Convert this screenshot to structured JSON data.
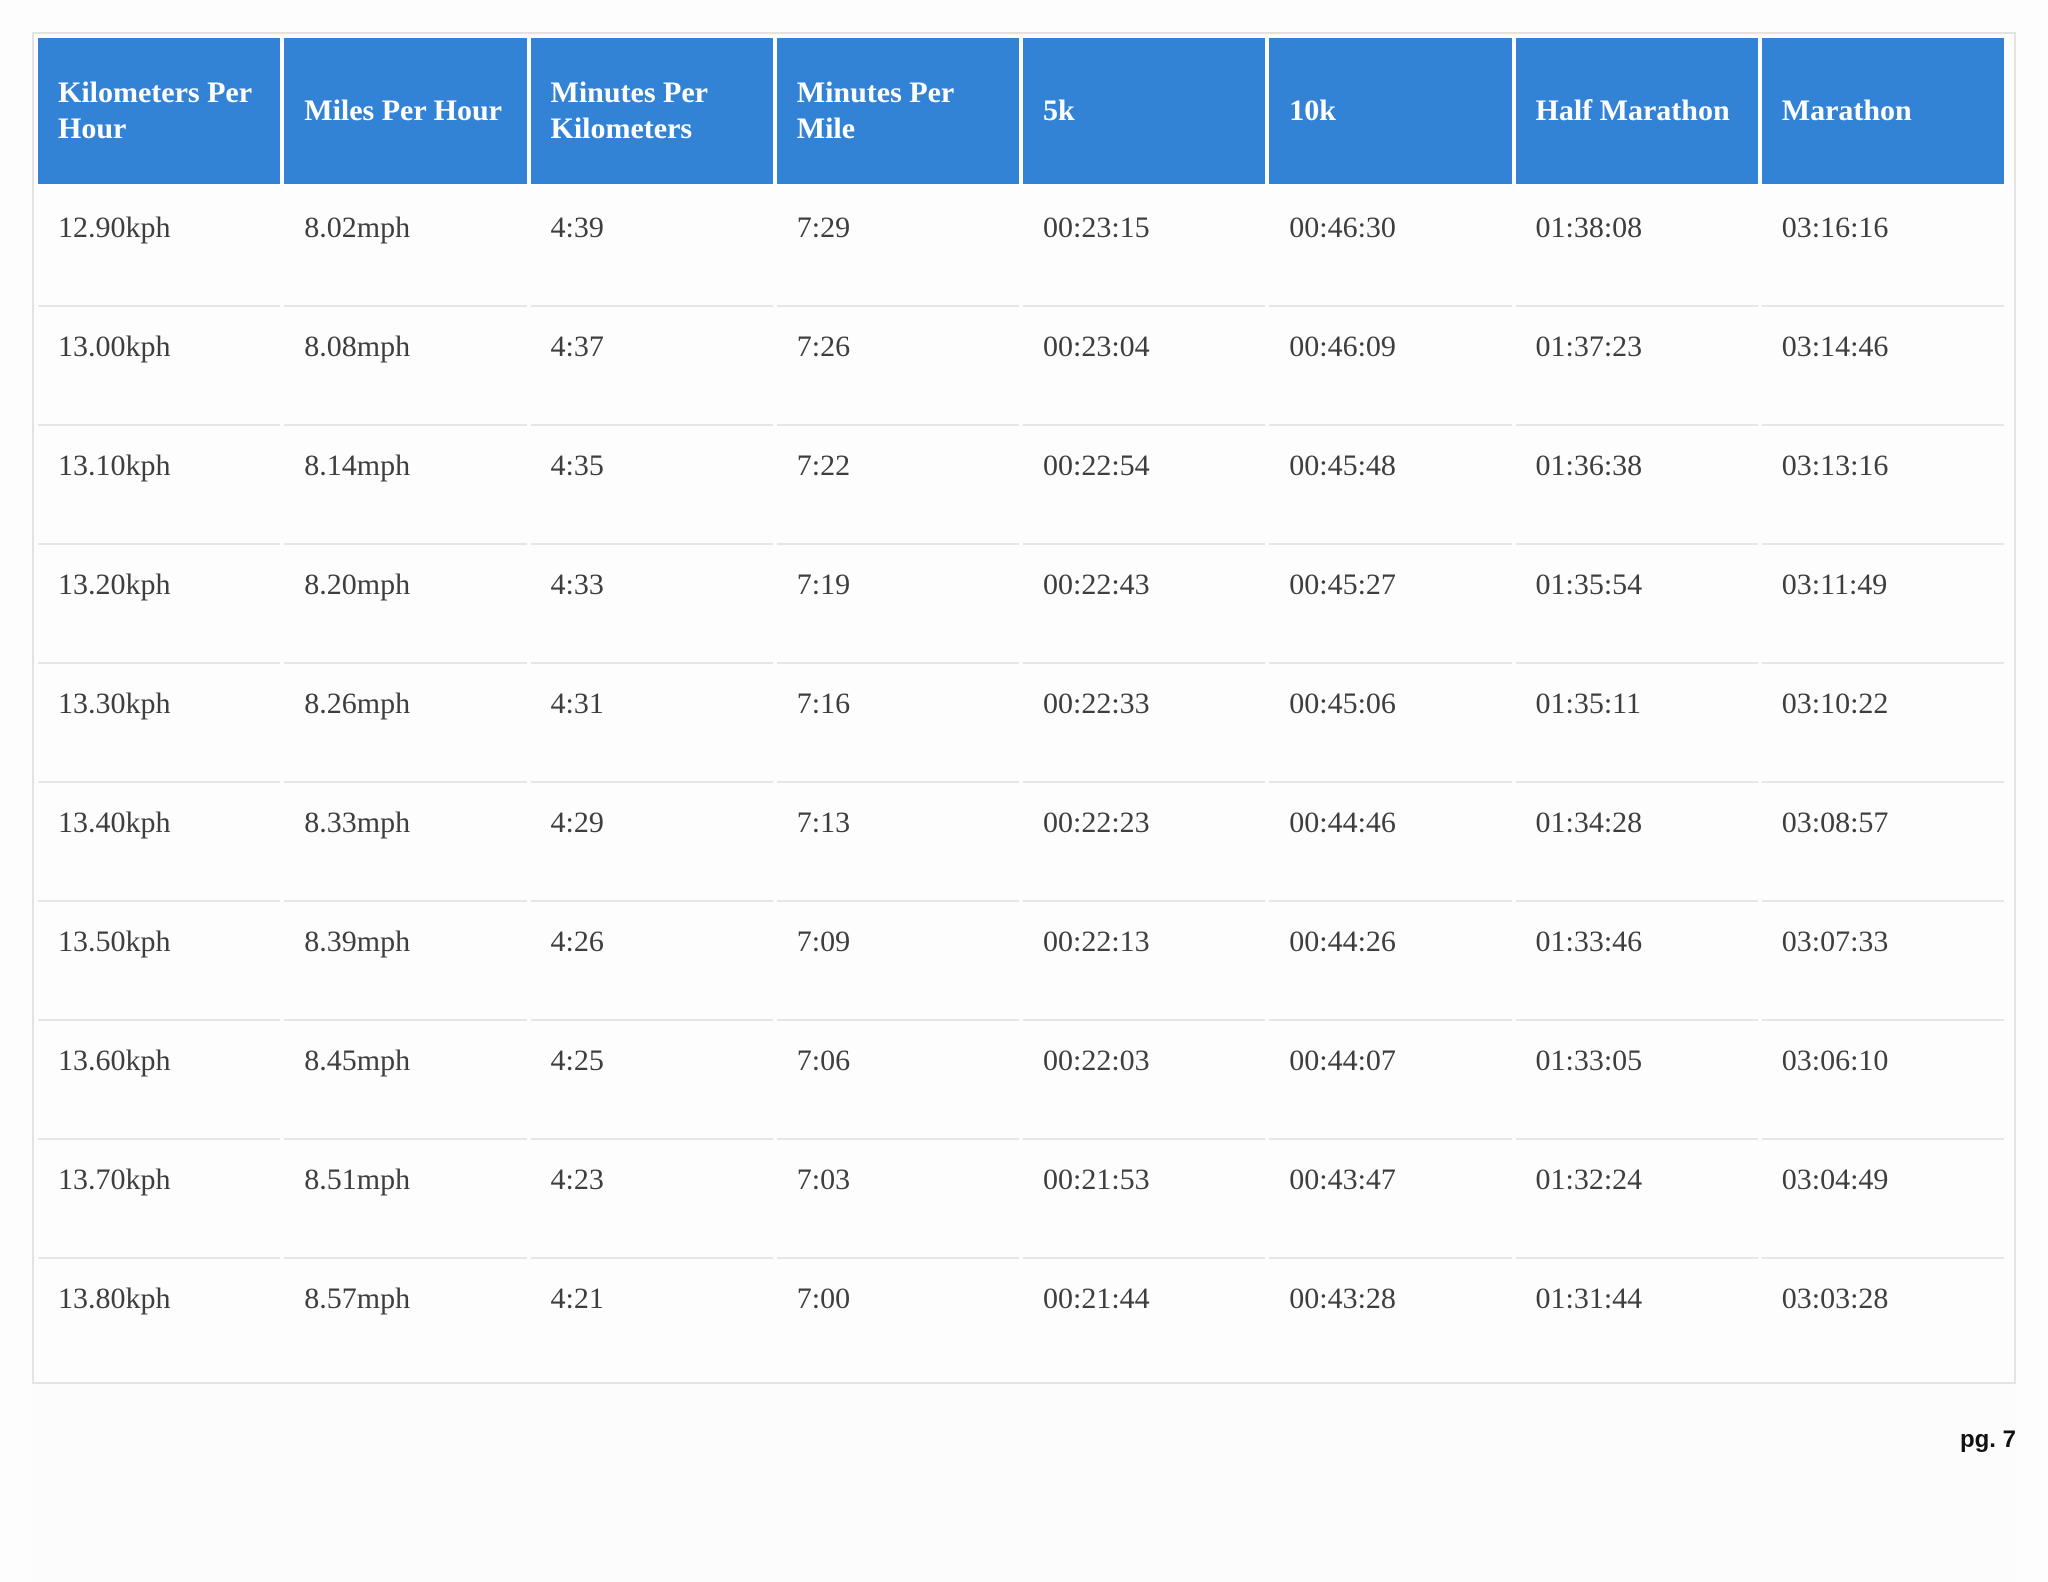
{
  "table": {
    "headers": [
      "Kilometers Per Hour",
      "Miles Per Hour",
      "Minutes Per Kilometers",
      "Minutes Per Mile",
      "5k",
      "10k",
      "Half Marathon",
      "Marathon"
    ],
    "rows": [
      [
        "12.90kph",
        "8.02mph",
        "4:39",
        "7:29",
        "00:23:15",
        "00:46:30",
        "01:38:08",
        "03:16:16"
      ],
      [
        "13.00kph",
        "8.08mph",
        "4:37",
        "7:26",
        "00:23:04",
        "00:46:09",
        "01:37:23",
        "03:14:46"
      ],
      [
        "13.10kph",
        "8.14mph",
        "4:35",
        "7:22",
        "00:22:54",
        "00:45:48",
        "01:36:38",
        "03:13:16"
      ],
      [
        "13.20kph",
        "8.20mph",
        "4:33",
        "7:19",
        "00:22:43",
        "00:45:27",
        "01:35:54",
        "03:11:49"
      ],
      [
        "13.30kph",
        "8.26mph",
        "4:31",
        "7:16",
        "00:22:33",
        "00:45:06",
        "01:35:11",
        "03:10:22"
      ],
      [
        "13.40kph",
        "8.33mph",
        "4:29",
        "7:13",
        "00:22:23",
        "00:44:46",
        "01:34:28",
        "03:08:57"
      ],
      [
        "13.50kph",
        "8.39mph",
        "4:26",
        "7:09",
        "00:22:13",
        "00:44:26",
        "01:33:46",
        "03:07:33"
      ],
      [
        "13.60kph",
        "8.45mph",
        "4:25",
        "7:06",
        "00:22:03",
        "00:44:07",
        "01:33:05",
        "03:06:10"
      ],
      [
        "13.70kph",
        "8.51mph",
        "4:23",
        "7:03",
        "00:21:53",
        "00:43:47",
        "01:32:24",
        "03:04:49"
      ],
      [
        "13.80kph",
        "8.57mph",
        "4:21",
        "7:00",
        "00:21:44",
        "00:43:28",
        "01:31:44",
        "03:03:28"
      ]
    ]
  },
  "footer": {
    "page_label": "pg. 7"
  },
  "colors": {
    "header_background": "#3283d5",
    "header_text": "#ffffff",
    "cell_text": "#3e3e3e"
  }
}
